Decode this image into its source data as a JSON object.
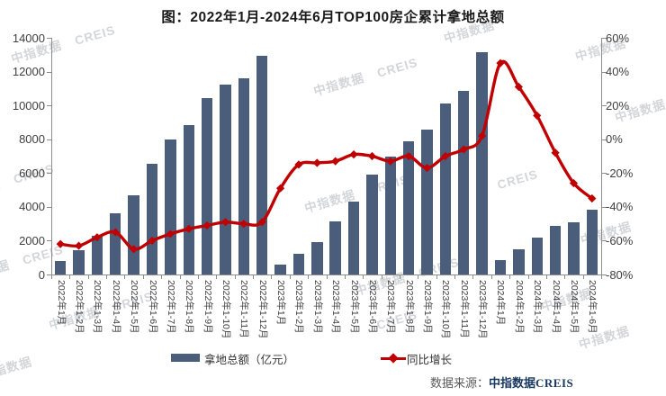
{
  "title": "图：2022年1月-2024年6月TOP100房企累计拿地总额",
  "legend": {
    "bar_label": "拿地总额（亿元）",
    "line_label": "同比增长"
  },
  "source": {
    "prefix": "数据来源：",
    "brand": "中指数据",
    "brand_en": "CREIS"
  },
  "watermark": {
    "cn": "中指数据",
    "en": "CREIS"
  },
  "colors": {
    "bar": "#4a5e7c",
    "line": "#c00000",
    "axis": "#8c8c8c",
    "tick_label": "#404040",
    "title": "#1a1a1a",
    "source_brand": "#17375e"
  },
  "chart_data": {
    "type": "bar",
    "subtype": "bar+line combo, dual axis",
    "title": "图：2022年1月-2024年6月TOP100房企累计拿地总额",
    "categories": [
      "2022年1月",
      "2022年1-2月",
      "2022年1-3月",
      "2022年1-4月",
      "2022年1-5月",
      "2022年1-6月",
      "2022年1-7月",
      "2022年1-8月",
      "2022年1-9月",
      "2022年1-10月",
      "2022年1-11月",
      "2022年1-12月",
      "2023年1月",
      "2023年1-2月",
      "2023年1-3月",
      "2023年1-4月",
      "2023年1-5月",
      "2023年1-6月",
      "2023年1-7月",
      "2023年1-8月",
      "2023年1-9月",
      "2023年1-10月",
      "2023年1-11月",
      "2023年1-12月",
      "2024年1月",
      "2024年1-2月",
      "2024年1-3月",
      "2024年1-4月",
      "2024年1-5月",
      "2024年1-6月"
    ],
    "series": [
      {
        "name": "拿地总额（亿元）",
        "type": "bar",
        "axis": "left",
        "values": [
          800,
          1450,
          2270,
          3630,
          4700,
          6550,
          7980,
          8840,
          10430,
          11220,
          11600,
          12950,
          570,
          1210,
          1920,
          3160,
          4300,
          5910,
          6960,
          7880,
          8590,
          10100,
          10860,
          13130,
          840,
          1510,
          2180,
          2860,
          3100,
          3820
        ]
      },
      {
        "name": "同比增长",
        "type": "line",
        "axis": "right",
        "unit": "%",
        "values": [
          -62,
          -63,
          -58,
          -55,
          -65,
          -60,
          -56,
          -53,
          -51,
          -49,
          -50,
          -49,
          -29,
          -15,
          -14,
          -13,
          -9,
          -10,
          -13,
          -10,
          -17,
          -10,
          -6,
          2,
          45,
          31,
          14,
          -8,
          -26,
          -35
        ]
      }
    ],
    "left_axis": {
      "min": 0,
      "max": 14000,
      "step": 2000,
      "tick_labels": [
        "0",
        "2000",
        "4000",
        "6000",
        "8000",
        "10000",
        "12000",
        "14000"
      ]
    },
    "right_axis": {
      "min": -80,
      "max": 60,
      "step": 20,
      "tick_labels": [
        "-80%",
        "-60%",
        "-40%",
        "-20%",
        "0%",
        "20%",
        "40%",
        "60%"
      ]
    },
    "grid": false,
    "legend_position": "bottom",
    "source_note": "数据来源：中指数据CREIS"
  }
}
